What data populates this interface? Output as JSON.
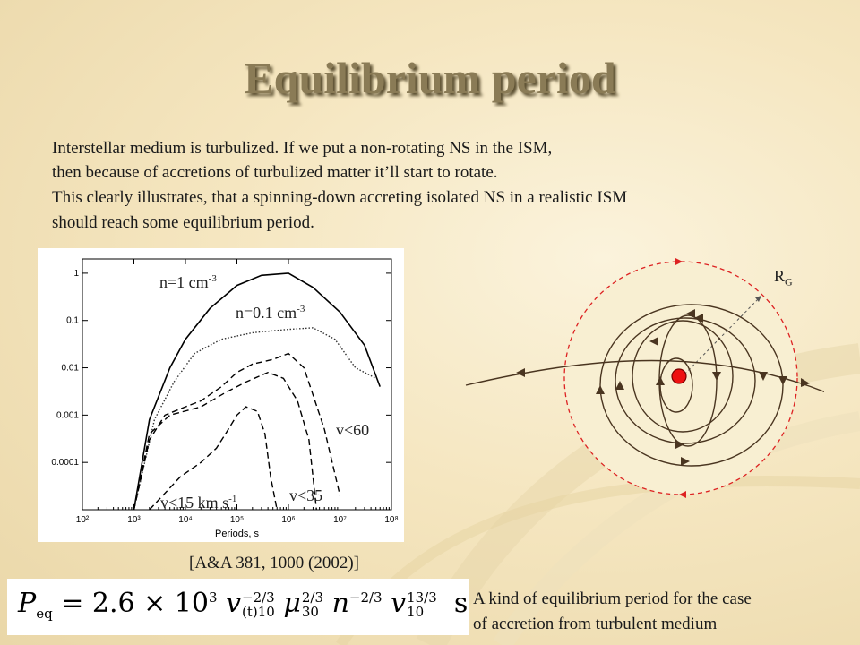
{
  "title": "Equilibrium period",
  "intro": {
    "line1": "Interstellar medium is turbulized. If we put a non-rotating NS in the ISM,",
    "line2": "then because of accretions of turbulized matter it’ll start to rotate.",
    "line3": "This clearly illustrates, that a spinning-down accreting isolated NS in a realistic ISM",
    "line4": "should reach some equilibrium period."
  },
  "chart_data": {
    "type": "line",
    "xlabel": "Periods, s",
    "ylabel": "",
    "xscale": "log",
    "yscale": "log",
    "xlim": [
      100,
      100000000
    ],
    "ylim": [
      1e-05,
      2
    ],
    "x_ticks": [
      "10²",
      "10³",
      "10⁴",
      "10⁵",
      "10⁶",
      "10⁷",
      "10⁸"
    ],
    "y_ticks": [
      "1",
      "0.1",
      "0.01",
      "0.001",
      "0.0001"
    ],
    "series": [
      {
        "name": "n=1 cm-3",
        "style": "solid",
        "color": "#000000",
        "points": [
          [
            1000,
            1e-05
          ],
          [
            2000,
            0.0008
          ],
          [
            5000,
            0.01
          ],
          [
            10000,
            0.04
          ],
          [
            30000,
            0.18
          ],
          [
            100000,
            0.55
          ],
          [
            300000,
            0.9
          ],
          [
            1000000,
            1.0
          ],
          [
            3000000,
            0.5
          ],
          [
            10000000,
            0.15
          ],
          [
            30000000,
            0.03
          ],
          [
            60000000,
            0.004
          ]
        ]
      },
      {
        "name": "n=0.1 cm-3",
        "style": "dotted",
        "color": "#333333",
        "points": [
          [
            1000,
            1e-05
          ],
          [
            2500,
            0.0008
          ],
          [
            6000,
            0.005
          ],
          [
            15000,
            0.02
          ],
          [
            50000,
            0.04
          ],
          [
            200000,
            0.055
          ],
          [
            1000000,
            0.065
          ],
          [
            3000000,
            0.07
          ],
          [
            8000000,
            0.04
          ],
          [
            20000000,
            0.01
          ],
          [
            50000000,
            0.006
          ]
        ]
      },
      {
        "name": "v<60",
        "style": "dashed",
        "color": "#000000",
        "points": [
          [
            1000,
            1e-05
          ],
          [
            2000,
            0.0003
          ],
          [
            4000,
            0.001
          ],
          [
            10000,
            0.0015
          ],
          [
            20000,
            0.002
          ],
          [
            50000,
            0.004
          ],
          [
            100000,
            0.008
          ],
          [
            200000,
            0.012
          ],
          [
            500000,
            0.015
          ],
          [
            1000000,
            0.02
          ],
          [
            2000000,
            0.01
          ],
          [
            5000000,
            0.0005
          ],
          [
            10000000,
            2e-05
          ]
        ]
      },
      {
        "name": "v<35",
        "style": "dashed",
        "color": "#000000",
        "points": [
          [
            1000,
            1e-05
          ],
          [
            2000,
            0.0004
          ],
          [
            5000,
            0.001
          ],
          [
            20000,
            0.0015
          ],
          [
            60000,
            0.003
          ],
          [
            150000,
            0.005
          ],
          [
            400000,
            0.008
          ],
          [
            800000,
            0.006
          ],
          [
            1500000,
            0.002
          ],
          [
            2500000,
            0.0003
          ],
          [
            3500000,
            1e-05
          ]
        ]
      },
      {
        "name": "v<15 km s-1",
        "style": "dashed",
        "color": "#000000",
        "points": [
          [
            2000,
            1e-05
          ],
          [
            8000,
            5e-05
          ],
          [
            20000,
            0.0001
          ],
          [
            40000,
            0.0002
          ],
          [
            60000,
            0.0004
          ],
          [
            100000,
            0.001
          ],
          [
            150000,
            0.0015
          ],
          [
            250000,
            0.0012
          ],
          [
            350000,
            0.0004
          ],
          [
            450000,
            5e-05
          ],
          [
            600000,
            1e-05
          ]
        ]
      }
    ]
  },
  "chart_labels": {
    "n1_base": "n=1 cm",
    "n1_exp": "-3",
    "n01_base": "n=0.1 cm",
    "n01_exp": "-3",
    "v60": "v<60",
    "v35": "v<35",
    "v15_base": "v<15 km s",
    "v15_exp": "-1"
  },
  "citation": "[A&A 381, 1000 (2002)]",
  "formula": {
    "lhs": "P",
    "lhs_sub": "eq",
    "eq": " = 2.6 × 10",
    "exp3": "3",
    "v": " v",
    "v_sup": "−2/3",
    "v_sub": "(t)10",
    "mu": " μ",
    "mu_sup": "2/3",
    "mu_sub": "30",
    "n": " n",
    "n_sup": "−2/3",
    "v2": " v",
    "v2_sup": "13/3",
    "v2_sub": "10",
    "unit": "  s"
  },
  "caption": {
    "line1": "A kind of equilibrium period for the case",
    "line2": "of accretion from turbulent medium"
  },
  "diagram": {
    "rg_label": "R",
    "rg_sub": "G",
    "boundary_color": "#dd2222",
    "star_color": "#ee1111",
    "orbit_color": "#4a3520"
  }
}
